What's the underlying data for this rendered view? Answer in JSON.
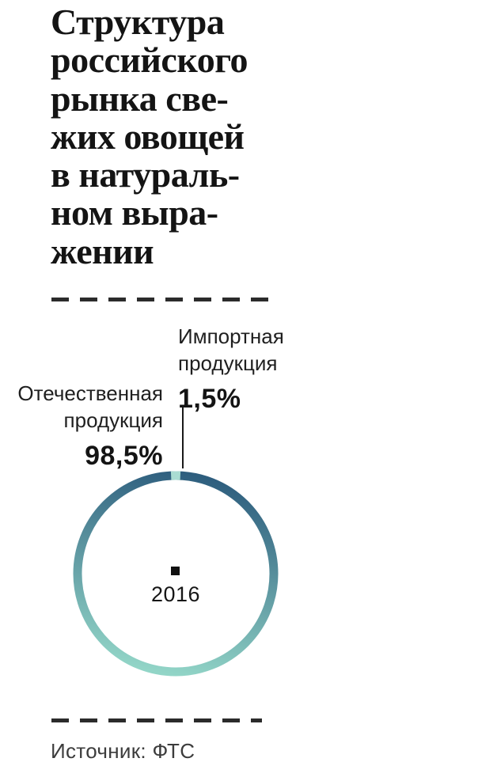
{
  "title": "Структура\nроссийского\nрынка све-\nжих овощей\nв натураль-\nном выра-\nжении",
  "chart_data": {
    "type": "pie",
    "title": "Структура российского рынка свежих овощей в натуральном выражении",
    "center_label": "2016",
    "slices": [
      {
        "name": "Отечественная продукция",
        "value": 98.5,
        "value_display": "98,5%"
      },
      {
        "name": "Импортная продукция",
        "value": 1.5,
        "value_display": "1,5%"
      }
    ],
    "legend_position": "callout-labels",
    "source": "Источник: ФТС"
  },
  "labels": {
    "import": {
      "text": "Импортная\nпродукция"
    },
    "domestic": {
      "text": "Отечественная\nпродукция"
    }
  },
  "colors": {
    "ring_gradient_start": "#2e5e7e",
    "ring_gradient_end": "#92d5c7",
    "import_segment": "#a9dcd2",
    "text": "#1a1a1a",
    "dash": "#2b2b2b"
  }
}
